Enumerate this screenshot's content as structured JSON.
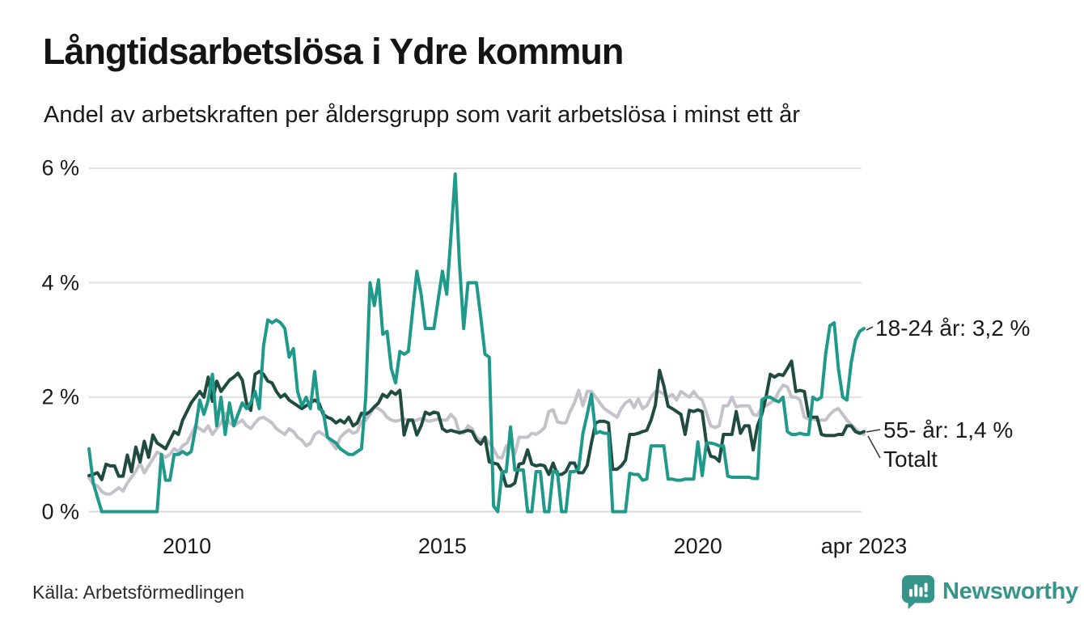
{
  "header": {
    "title": "Långtidsarbetslösa i Ydre kommun",
    "subtitle": "Andel av arbetskraften per åldersgrupp som varit arbetslösa i minst ett år"
  },
  "source": "Källa: Arbetsförmedlingen",
  "branding": {
    "logo_text": "Newsworthy",
    "logo_color": "#37948b"
  },
  "chart_data": {
    "type": "line",
    "title": "Långtidsarbetslösa i Ydre kommun",
    "subtitle": "Andel av arbetskraften per åldersgrupp som varit arbetslösa i minst ett år",
    "unit": "%",
    "x_start": "2008-02",
    "x_end": "2023-04",
    "x_interval": "monthly",
    "x_ticks": [
      "2010",
      "2015",
      "2020",
      "apr 2023"
    ],
    "x_tick_indices": [
      23,
      83,
      143,
      182
    ],
    "ylim": [
      0,
      6
    ],
    "y_tick_values": [
      0,
      2,
      4,
      6
    ],
    "y_tick_labels": [
      "0 %",
      "2 %",
      "4 %",
      "6 %"
    ],
    "grid": true,
    "legend_position": "end-labels-right",
    "gridline_color": "#e2e2e2",
    "series": [
      {
        "name": "Totalt",
        "end_label": "Totalt",
        "color": "#c4c1cb",
        "values": [
          0.59,
          0.48,
          0.45,
          0.35,
          0.31,
          0.31,
          0.36,
          0.42,
          0.36,
          0.5,
          0.6,
          0.71,
          0.85,
          0.68,
          0.8,
          0.92,
          1.04,
          1.0,
          0.95,
          1.0,
          1.1,
          1.05,
          1.15,
          1.2,
          1.35,
          1.5,
          1.45,
          1.4,
          1.5,
          1.35,
          1.45,
          1.55,
          1.72,
          1.55,
          1.5,
          1.55,
          1.6,
          1.5,
          1.45,
          1.55,
          1.63,
          1.65,
          1.6,
          1.55,
          1.45,
          1.4,
          1.35,
          1.45,
          1.4,
          1.3,
          1.25,
          1.15,
          1.2,
          1.35,
          1.4,
          1.35,
          1.3,
          1.2,
          1.1,
          1.3,
          1.37,
          1.43,
          1.37,
          1.4,
          1.58,
          1.6,
          1.7,
          1.83,
          1.8,
          1.75,
          1.65,
          1.6,
          1.58,
          1.6,
          1.62,
          1.6,
          1.58,
          1.6,
          1.63,
          1.6,
          1.58,
          1.6,
          1.62,
          1.6,
          1.6,
          1.7,
          1.62,
          1.37,
          1.37,
          1.5,
          1.45,
          1.3,
          1.25,
          1.3,
          1.2,
          1.1,
          0.95,
          0.94,
          1.15,
          1.15,
          1.0,
          1.3,
          1.3,
          1.3,
          1.37,
          1.35,
          1.4,
          1.47,
          1.75,
          1.78,
          1.57,
          1.55,
          1.55,
          1.75,
          1.9,
          2.12,
          1.85,
          2.1,
          2.1,
          2.0,
          1.9,
          1.8,
          1.75,
          1.7,
          1.65,
          1.8,
          1.9,
          1.95,
          1.82,
          1.97,
          1.8,
          1.85,
          2.0,
          2.1,
          2.1,
          2.05,
          2.0,
          2.05,
          1.95,
          2.1,
          2.05,
          2.0,
          2.1,
          2.0,
          1.95,
          1.73,
          1.5,
          1.47,
          1.5,
          1.85,
          1.85,
          2.0,
          1.83,
          1.85,
          1.85,
          1.85,
          1.7,
          1.68,
          1.83,
          1.85,
          1.9,
          1.95,
          2.1,
          2.21,
          2.18,
          2.0,
          2.0,
          1.95,
          1.65,
          1.62,
          1.62,
          1.6,
          1.6,
          1.6,
          1.7,
          1.77,
          1.8,
          1.7,
          1.6,
          1.52,
          1.45,
          1.38,
          1.35
        ]
      },
      {
        "name": "55- år",
        "end_label": "55- år: 1,4 %",
        "color": "#1f4b40",
        "values": [
          0.63,
          0.65,
          0.68,
          0.56,
          0.83,
          0.8,
          0.8,
          0.62,
          0.62,
          0.99,
          0.7,
          1.13,
          0.87,
          1.23,
          0.95,
          1.34,
          1.2,
          1.15,
          1.1,
          1.25,
          1.4,
          1.35,
          1.6,
          1.75,
          1.9,
          2.0,
          2.1,
          2.0,
          2.35,
          1.93,
          2.28,
          2.1,
          2.2,
          2.3,
          2.35,
          2.42,
          2.3,
          1.9,
          1.77,
          2.4,
          2.45,
          2.4,
          2.28,
          2.25,
          2.1,
          2.0,
          2.05,
          1.95,
          1.9,
          1.85,
          1.8,
          1.85,
          1.9,
          1.95,
          1.9,
          1.7,
          1.65,
          1.62,
          1.55,
          1.6,
          1.55,
          1.65,
          1.5,
          1.55,
          1.72,
          1.7,
          1.75,
          1.83,
          1.9,
          2.05,
          2.0,
          2.1,
          2.05,
          2.12,
          1.34,
          1.6,
          1.6,
          1.34,
          1.5,
          1.74,
          1.7,
          1.74,
          1.72,
          1.45,
          1.4,
          1.42,
          1.4,
          1.38,
          1.4,
          1.42,
          1.4,
          1.25,
          1.18,
          1.3,
          0.87,
          0.85,
          0.83,
          0.7,
          0.45,
          0.45,
          0.5,
          0.83,
          0.85,
          1.08,
          0.83,
          0.8,
          0.82,
          0.8,
          0.65,
          0.85,
          0.65,
          0.65,
          0.7,
          0.85,
          0.85,
          0.68,
          0.68,
          0.81,
          1.2,
          1.55,
          1.58,
          1.58,
          1.55,
          0.74,
          0.74,
          0.8,
          0.9,
          1.35,
          1.35,
          1.37,
          1.4,
          1.42,
          1.6,
          1.86,
          2.47,
          2.2,
          1.84,
          1.8,
          1.75,
          1.7,
          1.35,
          1.77,
          1.75,
          1.78,
          1.75,
          1.2,
          0.97,
          0.95,
          0.88,
          1.35,
          1.35,
          1.35,
          1.75,
          1.37,
          1.5,
          1.5,
          1.08,
          1.5,
          1.7,
          2.0,
          2.4,
          2.35,
          2.4,
          2.38,
          2.5,
          2.63,
          2.1,
          2.12,
          2.1,
          1.67,
          1.65,
          1.65,
          1.35,
          1.33,
          1.33,
          1.33,
          1.35,
          1.35,
          1.5,
          1.5,
          1.4,
          1.37,
          1.4
        ]
      },
      {
        "name": "18-24 år",
        "end_label": "18-24 år: 3,2 %",
        "color": "#1f9a8a",
        "values": [
          1.1,
          0.5,
          0.25,
          0,
          0,
          0,
          0,
          0,
          0,
          0,
          0,
          0,
          0,
          0,
          0,
          0,
          0,
          1.0,
          0.55,
          0.55,
          1.0,
          1.0,
          1.05,
          1.0,
          1.05,
          1.45,
          1.95,
          1.7,
          1.95,
          2.4,
          1.5,
          2.0,
          1.35,
          1.9,
          1.5,
          1.7,
          1.9,
          1.8,
          1.9,
          2.1,
          1.8,
          2.9,
          3.35,
          3.3,
          3.35,
          3.3,
          3.2,
          2.7,
          2.85,
          2.1,
          1.85,
          2.0,
          1.8,
          2.45,
          1.8,
          1.75,
          1.3,
          1.25,
          1.2,
          1.1,
          1.05,
          1.0,
          1.0,
          1.05,
          1.1,
          2.0,
          4.0,
          3.6,
          4.05,
          3.1,
          3.15,
          2.5,
          2.25,
          2.8,
          2.75,
          2.8,
          3.5,
          4.2,
          3.8,
          3.2,
          3.2,
          3.2,
          3.7,
          4.2,
          3.8,
          4.8,
          5.9,
          4.35,
          3.2,
          4.0,
          4.0,
          4.0,
          3.4,
          2.75,
          2.7,
          0.1,
          0,
          0.7,
          0.7,
          1.48,
          0.73,
          0.73,
          0.73,
          0,
          0,
          0.7,
          0.7,
          0,
          0,
          0.7,
          0.7,
          0,
          0,
          0.7,
          0.7,
          0.75,
          1.37,
          1.7,
          2.05,
          1.37,
          1.4,
          1.37,
          1.37,
          0,
          0,
          0,
          0,
          0.67,
          0.65,
          0.65,
          0.55,
          0.57,
          1.15,
          1.15,
          1.15,
          1.15,
          0.57,
          0.57,
          0.55,
          0.55,
          0.57,
          0.57,
          0.57,
          1.22,
          0.63,
          1.2,
          1.2,
          1.18,
          1.15,
          1.15,
          0.62,
          0.6,
          0.6,
          0.6,
          0.6,
          0.6,
          0.58,
          0.58,
          1.95,
          2.0,
          2.0,
          1.95,
          1.92,
          2.0,
          1.4,
          1.35,
          1.35,
          1.37,
          1.35,
          1.35,
          2.0,
          1.95,
          2.0,
          2.75,
          3.25,
          3.3,
          2.5,
          2.0,
          1.95,
          2.6,
          3.0,
          3.15,
          3.2
        ]
      }
    ]
  }
}
